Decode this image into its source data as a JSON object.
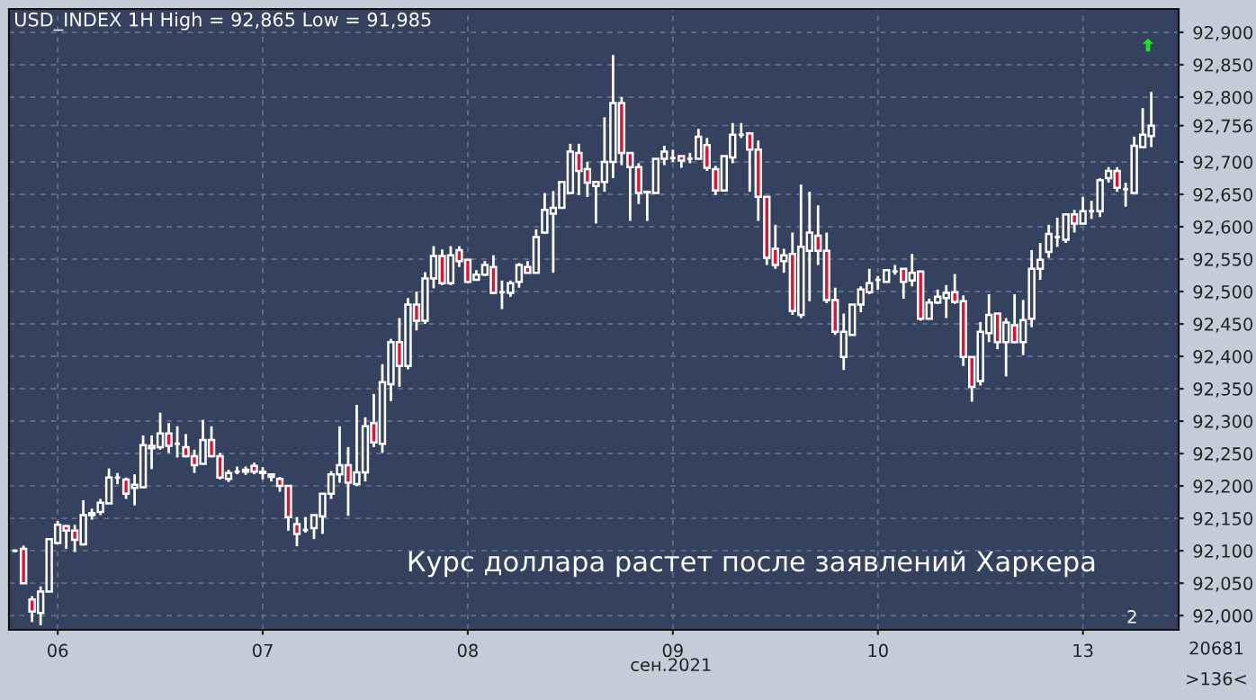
{
  "chart_data": {
    "type": "candlestick",
    "title": "USD_INDEX 1H High = 92,865 Low = 91,985",
    "xlabel": "сен.2021",
    "annotations": [
      "Курс доллара растет после заявлений Харкера",
      "2",
      "20681",
      ">136<"
    ],
    "categories": [
      null,
      null,
      null,
      null,
      null,
      "06",
      null,
      null,
      null,
      null,
      null,
      null,
      null,
      null,
      null,
      null,
      null,
      null,
      null,
      null,
      null,
      null,
      null,
      null,
      null,
      null,
      null,
      null,
      null,
      "07",
      null,
      null,
      null,
      null,
      null,
      null,
      null,
      null,
      null,
      null,
      null,
      null,
      null,
      null,
      null,
      null,
      null,
      null,
      null,
      null,
      null,
      null,
      null,
      "08",
      null,
      null,
      null,
      null,
      null,
      null,
      null,
      null,
      null,
      null,
      null,
      null,
      null,
      null,
      null,
      null,
      null,
      null,
      null,
      null,
      null,
      null,
      null,
      "09",
      null,
      null,
      null,
      null,
      null,
      null,
      null,
      null,
      null,
      null,
      null,
      null,
      null,
      null,
      null,
      null,
      null,
      null,
      null,
      null,
      null,
      null,
      null,
      "10",
      null,
      null,
      null,
      null,
      null,
      null,
      null,
      null,
      null,
      null,
      null,
      null,
      null,
      null,
      null,
      null,
      null,
      null,
      null,
      null,
      null,
      null,
      null,
      "13",
      null,
      null,
      null,
      null,
      null,
      null,
      null,
      null
    ],
    "ohlc": [
      [
        92100,
        92102,
        92098,
        92100
      ],
      [
        92103,
        92108,
        92050,
        92050
      ],
      [
        92025,
        92030,
        91990,
        92006
      ],
      [
        92004,
        92045,
        91985,
        92037
      ],
      [
        92037,
        92118,
        92037,
        92118
      ],
      [
        92112,
        92146,
        92110,
        92140
      ],
      [
        92138,
        92140,
        92103,
        92131
      ],
      [
        92131,
        92140,
        92098,
        92117
      ],
      [
        92110,
        92178,
        92108,
        92155
      ],
      [
        92155,
        92165,
        92148,
        92158
      ],
      [
        92160,
        92180,
        92155,
        92174
      ],
      [
        92173,
        92227,
        92173,
        92213
      ],
      [
        92213,
        92220,
        92203,
        92213
      ],
      [
        92210,
        92213,
        92180,
        92188
      ],
      [
        92197,
        92218,
        92170,
        92202
      ],
      [
        92198,
        92278,
        92198,
        92263
      ],
      [
        92262,
        92278,
        92226,
        92258
      ],
      [
        92260,
        92313,
        92256,
        92281
      ],
      [
        92281,
        92297,
        92251,
        92262
      ],
      [
        92265,
        92292,
        92244,
        92265
      ],
      [
        92260,
        92280,
        92244,
        92246
      ],
      [
        92246,
        92256,
        92220,
        92232
      ],
      [
        92234,
        92302,
        92234,
        92271
      ],
      [
        92271,
        92292,
        92244,
        92246
      ],
      [
        92246,
        92251,
        92210,
        92213
      ],
      [
        92211,
        92225,
        92206,
        92220
      ],
      [
        92222,
        92230,
        92218,
        92222
      ],
      [
        92222,
        92230,
        92217,
        92225
      ],
      [
        92231,
        92236,
        92218,
        92222
      ],
      [
        92222,
        92229,
        92210,
        92220
      ],
      [
        92218,
        92218,
        92207,
        92214
      ],
      [
        92211,
        92214,
        92191,
        92200
      ],
      [
        92200,
        92200,
        92131,
        92152
      ],
      [
        92141,
        92152,
        92107,
        92126
      ],
      [
        92132,
        92152,
        92128,
        92132
      ],
      [
        92135,
        92155,
        92118,
        92155
      ],
      [
        92153,
        92188,
        92126,
        92188
      ],
      [
        92188,
        92223,
        92180,
        92218
      ],
      [
        92218,
        92292,
        92205,
        92232
      ],
      [
        92232,
        92260,
        92154,
        92205
      ],
      [
        92203,
        92325,
        92200,
        92221
      ],
      [
        92221,
        92306,
        92207,
        92292
      ],
      [
        92297,
        92342,
        92260,
        92267
      ],
      [
        92265,
        92388,
        92251,
        92360
      ],
      [
        92357,
        92427,
        92331,
        92422
      ],
      [
        92422,
        92459,
        92353,
        92385
      ],
      [
        92385,
        92490,
        92380,
        92480
      ],
      [
        92480,
        92500,
        92440,
        92455
      ],
      [
        92455,
        92530,
        92450,
        92520
      ],
      [
        92520,
        92570,
        92505,
        92555
      ],
      [
        92555,
        92565,
        92510,
        92513
      ],
      [
        92513,
        92570,
        92510,
        92556
      ],
      [
        92564,
        92570,
        92538,
        92547
      ],
      [
        92549,
        92549,
        92513,
        92515
      ],
      [
        92518,
        92533,
        92517,
        92526
      ],
      [
        92526,
        92547,
        92524,
        92541
      ],
      [
        92538,
        92556,
        92496,
        92498
      ],
      [
        92499,
        92517,
        92473,
        92499
      ],
      [
        92498,
        92517,
        92492,
        92513
      ],
      [
        92515,
        92544,
        92506,
        92541
      ],
      [
        92538,
        92547,
        92529,
        92529
      ],
      [
        92529,
        92596,
        92529,
        92584
      ],
      [
        92591,
        92652,
        92589,
        92626
      ],
      [
        92620,
        92655,
        92529,
        92629
      ],
      [
        92629,
        92669,
        92629,
        92669
      ],
      [
        92652,
        92728,
        92652,
        92716
      ],
      [
        92714,
        92728,
        92649,
        92686
      ],
      [
        92689,
        92700,
        92646,
        92668
      ],
      [
        92663,
        92669,
        92605,
        92669
      ],
      [
        92669,
        92769,
        92654,
        92700
      ],
      [
        92700,
        92865,
        92675,
        92791
      ],
      [
        92791,
        92800,
        92695,
        92714
      ],
      [
        92714,
        92714,
        92609,
        92692
      ],
      [
        92692,
        92698,
        92635,
        92652
      ],
      [
        92653,
        92654,
        92609,
        92654
      ],
      [
        92652,
        92705,
        92652,
        92705
      ],
      [
        92705,
        92725,
        92695,
        92716
      ],
      [
        92706,
        92719,
        92700,
        92706
      ],
      [
        92709,
        92709,
        92691,
        92702
      ],
      [
        92705,
        92714,
        92698,
        92705
      ],
      [
        92705,
        92751,
        92705,
        92739
      ],
      [
        92726,
        92737,
        92686,
        92691
      ],
      [
        92689,
        92694,
        92649,
        92656
      ],
      [
        92656,
        92709,
        92656,
        92709
      ],
      [
        92707,
        92760,
        92698,
        92742
      ],
      [
        92742,
        92760,
        92737,
        92742
      ],
      [
        92744,
        92746,
        92654,
        92719
      ],
      [
        92719,
        92733,
        92609,
        92646
      ],
      [
        92646,
        92646,
        92541,
        92552
      ],
      [
        92566,
        92603,
        92535,
        92541
      ],
      [
        92547,
        92566,
        92529,
        92556
      ],
      [
        92558,
        92591,
        92464,
        92470
      ],
      [
        92464,
        92665,
        92459,
        92569
      ],
      [
        92563,
        92654,
        92485,
        92591
      ],
      [
        92586,
        92633,
        92541,
        92563
      ],
      [
        92563,
        92591,
        92482,
        92487
      ],
      [
        92487,
        92506,
        92433,
        92438
      ],
      [
        92399,
        92466,
        92379,
        92438
      ],
      [
        92433,
        92480,
        92433,
        92480
      ],
      [
        92480,
        92508,
        92468,
        92503
      ],
      [
        92499,
        92535,
        92496,
        92513
      ],
      [
        92518,
        92524,
        92503,
        92518
      ],
      [
        92515,
        92533,
        92515,
        92533
      ],
      [
        92531,
        92541,
        92526,
        92531
      ],
      [
        92535,
        92535,
        92489,
        92515
      ],
      [
        92517,
        92558,
        92508,
        92529
      ],
      [
        92531,
        92531,
        92455,
        92458
      ],
      [
        92458,
        92489,
        92458,
        92483
      ],
      [
        92483,
        92503,
        92481,
        92492
      ],
      [
        92490,
        92510,
        92459,
        92498
      ],
      [
        92499,
        92527,
        92481,
        92484
      ],
      [
        92485,
        92494,
        92385,
        92399
      ],
      [
        92399,
        92399,
        92330,
        92353
      ],
      [
        92362,
        92453,
        92355,
        92438
      ],
      [
        92436,
        92496,
        92422,
        92464
      ],
      [
        92466,
        92466,
        92411,
        92422
      ],
      [
        92422,
        92459,
        92369,
        92452
      ],
      [
        92448,
        92496,
        92420,
        92422
      ],
      [
        92422,
        92487,
        92402,
        92456
      ],
      [
        92458,
        92564,
        92445,
        92535
      ],
      [
        92535,
        92575,
        92518,
        92549
      ],
      [
        92561,
        92603,
        92552,
        92589
      ],
      [
        92584,
        92614,
        92569,
        92584
      ],
      [
        92580,
        92619,
        92575,
        92619
      ],
      [
        92619,
        92626,
        92591,
        92605
      ],
      [
        92605,
        92646,
        92605,
        92624
      ],
      [
        92624,
        92640,
        92612,
        92624
      ],
      [
        92624,
        92675,
        92615,
        92672
      ],
      [
        92675,
        92692,
        92668,
        92686
      ],
      [
        92686,
        92692,
        92654,
        92660
      ],
      [
        92658,
        92668,
        92631,
        92658
      ],
      [
        92652,
        92739,
        92652,
        92725
      ],
      [
        92723,
        92783,
        92723,
        92742
      ],
      [
        92740,
        92808,
        92723,
        92756
      ]
    ],
    "ylim": [
      91978,
      92936
    ],
    "yticks": [
      {
        "value": 92000,
        "label": "92,000"
      },
      {
        "value": 92050,
        "label": "92,050"
      },
      {
        "value": 92100,
        "label": "92,100"
      },
      {
        "value": 92150,
        "label": "92,150"
      },
      {
        "value": 92200,
        "label": "92,200"
      },
      {
        "value": 92250,
        "label": "92,250"
      },
      {
        "value": 92300,
        "label": "92,300"
      },
      {
        "value": 92350,
        "label": "92,350"
      },
      {
        "value": 92400,
        "label": "92,400"
      },
      {
        "value": 92450,
        "label": "92,450"
      },
      {
        "value": 92500,
        "label": "92,500"
      },
      {
        "value": 92550,
        "label": "92,550"
      },
      {
        "value": 92600,
        "label": "92,600"
      },
      {
        "value": 92650,
        "label": "92,650"
      },
      {
        "value": 92700,
        "label": "92,700"
      },
      {
        "value": 92756,
        "label": "92,756"
      },
      {
        "value": 92800,
        "label": "92,800"
      },
      {
        "value": 92850,
        "label": "92,850"
      },
      {
        "value": 92900,
        "label": "92,900"
      }
    ],
    "grid": true
  }
}
